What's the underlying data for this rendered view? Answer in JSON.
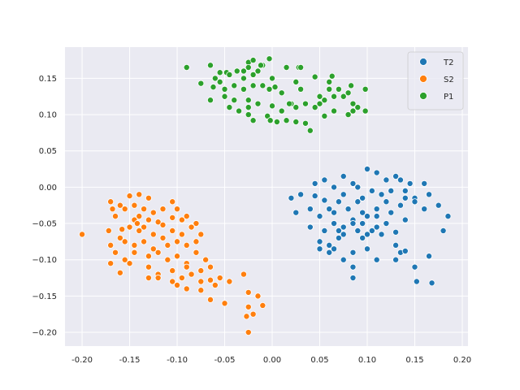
{
  "chart_data": {
    "type": "scatter",
    "title": "",
    "xlabel": "",
    "ylabel": "",
    "xlim": [
      -0.218,
      0.206
    ],
    "ylim": [
      -0.219,
      0.193
    ],
    "x_ticks": [
      "-0.20",
      "-0.15",
      "-0.10",
      "-0.05",
      "0.00",
      "0.05",
      "0.10",
      "0.15",
      "0.20"
    ],
    "x_tick_values": [
      -0.2,
      -0.15,
      -0.1,
      -0.05,
      0.0,
      0.05,
      0.1,
      0.15,
      0.2
    ],
    "y_ticks": [
      "0.15",
      "0.10",
      "0.05",
      "0.00",
      "−0.05",
      "−0.10",
      "−0.15",
      "−0.20"
    ],
    "y_tick_values": [
      0.15,
      0.1,
      0.05,
      0.0,
      -0.05,
      -0.1,
      -0.15,
      -0.2
    ],
    "grid": true,
    "legend_position": "top-right",
    "background": "#eaeaf2",
    "series": [
      {
        "name": "T2",
        "color": "#1f77b4",
        "points": [
          [
            0.1,
            0.025
          ],
          [
            0.11,
            0.02
          ],
          [
            0.12,
            0.01
          ],
          [
            0.13,
            0.015
          ],
          [
            0.135,
            0.01
          ],
          [
            0.145,
            0.005
          ],
          [
            0.16,
            0.005
          ],
          [
            0.075,
            0.015
          ],
          [
            0.055,
            0.01
          ],
          [
            0.045,
            0.005
          ],
          [
            0.065,
            0.0
          ],
          [
            0.085,
            0.005
          ],
          [
            0.09,
            0.0
          ],
          [
            0.105,
            -0.005
          ],
          [
            0.115,
            -0.01
          ],
          [
            0.125,
            -0.005
          ],
          [
            0.14,
            -0.015
          ],
          [
            0.15,
            -0.015
          ],
          [
            0.165,
            -0.01
          ],
          [
            0.02,
            -0.015
          ],
          [
            0.03,
            -0.01
          ],
          [
            0.045,
            -0.012
          ],
          [
            0.055,
            -0.018
          ],
          [
            0.07,
            -0.02
          ],
          [
            0.075,
            -0.01
          ],
          [
            0.09,
            -0.02
          ],
          [
            0.095,
            -0.015
          ],
          [
            0.11,
            -0.03
          ],
          [
            0.12,
            -0.02
          ],
          [
            0.135,
            -0.025
          ],
          [
            0.15,
            -0.02
          ],
          [
            0.16,
            -0.03
          ],
          [
            0.175,
            -0.025
          ],
          [
            0.185,
            -0.04
          ],
          [
            0.025,
            -0.035
          ],
          [
            0.04,
            -0.03
          ],
          [
            0.05,
            -0.04
          ],
          [
            0.06,
            -0.03
          ],
          [
            0.065,
            -0.035
          ],
          [
            0.08,
            -0.03
          ],
          [
            0.085,
            -0.045
          ],
          [
            0.095,
            -0.035
          ],
          [
            0.1,
            -0.04
          ],
          [
            0.11,
            -0.04
          ],
          [
            0.14,
            -0.045
          ],
          [
            0.04,
            -0.055
          ],
          [
            0.055,
            -0.06
          ],
          [
            0.065,
            -0.05
          ],
          [
            0.075,
            -0.055
          ],
          [
            0.085,
            -0.05
          ],
          [
            0.09,
            -0.06
          ],
          [
            0.1,
            -0.065
          ],
          [
            0.11,
            -0.055
          ],
          [
            0.12,
            -0.05
          ],
          [
            0.13,
            -0.062
          ],
          [
            0.18,
            -0.06
          ],
          [
            0.05,
            -0.075
          ],
          [
            0.06,
            -0.08
          ],
          [
            0.07,
            -0.07
          ],
          [
            0.075,
            -0.065
          ],
          [
            0.095,
            -0.07
          ],
          [
            0.105,
            -0.06
          ],
          [
            0.115,
            -0.065
          ],
          [
            0.06,
            -0.09
          ],
          [
            0.065,
            -0.085
          ],
          [
            0.075,
            -0.1
          ],
          [
            0.085,
            -0.09
          ],
          [
            0.1,
            -0.085
          ],
          [
            0.11,
            -0.1
          ],
          [
            0.13,
            -0.1
          ],
          [
            0.135,
            -0.09
          ],
          [
            0.14,
            -0.088
          ],
          [
            0.15,
            -0.11
          ],
          [
            0.165,
            -0.095
          ],
          [
            0.085,
            -0.11
          ],
          [
            0.085,
            -0.125
          ],
          [
            0.152,
            -0.13
          ],
          [
            0.168,
            -0.132
          ],
          [
            0.05,
            -0.085
          ],
          [
            0.07,
            -0.06
          ],
          [
            0.095,
            -0.05
          ],
          [
            0.13,
            -0.08
          ],
          [
            0.125,
            -0.035
          ],
          [
            0.14,
            -0.005
          ]
        ]
      },
      {
        "name": "S2",
        "color": "#ff7f0e",
        "points": [
          [
            -0.2,
            -0.065
          ],
          [
            -0.17,
            -0.02
          ],
          [
            -0.16,
            -0.025
          ],
          [
            -0.15,
            -0.012
          ],
          [
            -0.14,
            -0.01
          ],
          [
            -0.13,
            -0.015
          ],
          [
            -0.105,
            -0.02
          ],
          [
            -0.168,
            -0.03
          ],
          [
            -0.165,
            -0.04
          ],
          [
            -0.155,
            -0.03
          ],
          [
            -0.145,
            -0.025
          ],
          [
            -0.135,
            -0.03
          ],
          [
            -0.125,
            -0.035
          ],
          [
            -0.115,
            -0.03
          ],
          [
            -0.1,
            -0.03
          ],
          [
            -0.09,
            -0.04
          ],
          [
            -0.08,
            -0.05
          ],
          [
            -0.145,
            -0.045
          ],
          [
            -0.14,
            -0.04
          ],
          [
            -0.13,
            -0.045
          ],
          [
            -0.12,
            -0.048
          ],
          [
            -0.105,
            -0.042
          ],
          [
            -0.095,
            -0.045
          ],
          [
            -0.085,
            -0.055
          ],
          [
            -0.172,
            -0.06
          ],
          [
            -0.16,
            -0.07
          ],
          [
            -0.15,
            -0.055
          ],
          [
            -0.14,
            -0.06
          ],
          [
            -0.135,
            -0.055
          ],
          [
            -0.125,
            -0.065
          ],
          [
            -0.115,
            -0.07
          ],
          [
            -0.105,
            -0.06
          ],
          [
            -0.095,
            -0.065
          ],
          [
            -0.075,
            -0.065
          ],
          [
            -0.17,
            -0.08
          ],
          [
            -0.155,
            -0.075
          ],
          [
            -0.145,
            -0.08
          ],
          [
            -0.135,
            -0.075
          ],
          [
            -0.125,
            -0.085
          ],
          [
            -0.11,
            -0.08
          ],
          [
            -0.1,
            -0.075
          ],
          [
            -0.09,
            -0.08
          ],
          [
            -0.08,
            -0.075
          ],
          [
            -0.165,
            -0.09
          ],
          [
            -0.155,
            -0.1
          ],
          [
            -0.145,
            -0.09
          ],
          [
            -0.13,
            -0.095
          ],
          [
            -0.12,
            -0.09
          ],
          [
            -0.11,
            -0.1
          ],
          [
            -0.1,
            -0.095
          ],
          [
            -0.09,
            -0.105
          ],
          [
            -0.08,
            -0.09
          ],
          [
            -0.07,
            -0.1
          ],
          [
            -0.17,
            -0.105
          ],
          [
            -0.16,
            -0.118
          ],
          [
            -0.15,
            -0.105
          ],
          [
            -0.13,
            -0.11
          ],
          [
            -0.12,
            -0.12
          ],
          [
            -0.105,
            -0.115
          ],
          [
            -0.09,
            -0.11
          ],
          [
            -0.075,
            -0.115
          ],
          [
            -0.065,
            -0.11
          ],
          [
            -0.13,
            -0.125
          ],
          [
            -0.12,
            -0.125
          ],
          [
            -0.105,
            -0.13
          ],
          [
            -0.095,
            -0.125
          ],
          [
            -0.085,
            -0.12
          ],
          [
            -0.075,
            -0.13
          ],
          [
            -0.065,
            -0.128
          ],
          [
            -0.055,
            -0.125
          ],
          [
            -0.1,
            -0.135
          ],
          [
            -0.09,
            -0.14
          ],
          [
            -0.075,
            -0.142
          ],
          [
            -0.06,
            -0.135
          ],
          [
            -0.045,
            -0.13
          ],
          [
            -0.03,
            -0.12
          ],
          [
            -0.065,
            -0.155
          ],
          [
            -0.05,
            -0.16
          ],
          [
            -0.025,
            -0.145
          ],
          [
            -0.015,
            -0.15
          ],
          [
            -0.01,
            -0.163
          ],
          [
            -0.025,
            -0.165
          ],
          [
            -0.027,
            -0.178
          ],
          [
            -0.02,
            -0.175
          ],
          [
            -0.025,
            -0.2
          ],
          [
            -0.142,
            -0.05
          ],
          [
            -0.158,
            -0.058
          ],
          [
            -0.115,
            -0.052
          ]
        ]
      },
      {
        "name": "P1",
        "color": "#2ca02c",
        "points": [
          [
            -0.09,
            0.165
          ],
          [
            -0.065,
            0.168
          ],
          [
            -0.055,
            0.158
          ],
          [
            -0.048,
            0.158
          ],
          [
            -0.037,
            0.16
          ],
          [
            -0.03,
            0.16
          ],
          [
            -0.025,
            0.172
          ],
          [
            -0.02,
            0.175
          ],
          [
            -0.01,
            0.168
          ],
          [
            -0.003,
            0.177
          ],
          [
            -0.015,
            0.16
          ],
          [
            -0.025,
            0.165
          ],
          [
            -0.045,
            0.155
          ],
          [
            -0.06,
            0.15
          ],
          [
            -0.075,
            0.143
          ],
          [
            -0.062,
            0.138
          ],
          [
            -0.055,
            0.145
          ],
          [
            -0.05,
            0.135
          ],
          [
            -0.04,
            0.14
          ],
          [
            -0.03,
            0.15
          ],
          [
            -0.02,
            0.155
          ],
          [
            -0.01,
            0.14
          ],
          [
            0.0,
            0.15
          ],
          [
            0.015,
            0.165
          ],
          [
            0.028,
            0.165
          ],
          [
            0.03,
            0.165
          ],
          [
            0.045,
            0.152
          ],
          [
            0.06,
            0.145
          ],
          [
            0.063,
            0.153
          ],
          [
            0.06,
            0.135
          ],
          [
            0.07,
            0.135
          ],
          [
            0.083,
            0.14
          ],
          [
            0.098,
            0.135
          ],
          [
            0.065,
            0.125
          ],
          [
            0.08,
            0.13
          ],
          [
            0.025,
            0.145
          ],
          [
            0.03,
            0.135
          ],
          [
            0.01,
            0.13
          ],
          [
            0.003,
            0.138
          ],
          [
            -0.003,
            0.135
          ],
          [
            -0.02,
            0.14
          ],
          [
            -0.03,
            0.135
          ],
          [
            -0.04,
            0.12
          ],
          [
            -0.05,
            0.125
          ],
          [
            -0.065,
            0.12
          ],
          [
            -0.025,
            0.12
          ],
          [
            -0.045,
            0.11
          ],
          [
            -0.035,
            0.105
          ],
          [
            -0.025,
            0.11
          ],
          [
            -0.015,
            0.115
          ],
          [
            0.0,
            0.112
          ],
          [
            0.01,
            0.105
          ],
          [
            0.02,
            0.115
          ],
          [
            0.025,
            0.11
          ],
          [
            0.035,
            0.115
          ],
          [
            0.045,
            0.11
          ],
          [
            0.05,
            0.115
          ],
          [
            0.055,
            0.12
          ],
          [
            0.075,
            0.125
          ],
          [
            0.085,
            0.115
          ],
          [
            0.09,
            0.11
          ],
          [
            0.098,
            0.105
          ],
          [
            0.065,
            0.105
          ],
          [
            0.08,
            0.1
          ],
          [
            0.085,
            0.105
          ],
          [
            -0.025,
            0.1
          ],
          [
            -0.005,
            0.098
          ],
          [
            0.005,
            0.09
          ],
          [
            0.015,
            0.092
          ],
          [
            0.025,
            0.09
          ],
          [
            0.035,
            0.088
          ],
          [
            0.04,
            0.078
          ],
          [
            0.055,
            0.098
          ],
          [
            -0.02,
            0.092
          ],
          [
            -0.002,
            0.092
          ],
          [
            0.018,
            0.115
          ],
          [
            -0.012,
            0.168
          ],
          [
            0.05,
            0.125
          ]
        ]
      }
    ]
  }
}
